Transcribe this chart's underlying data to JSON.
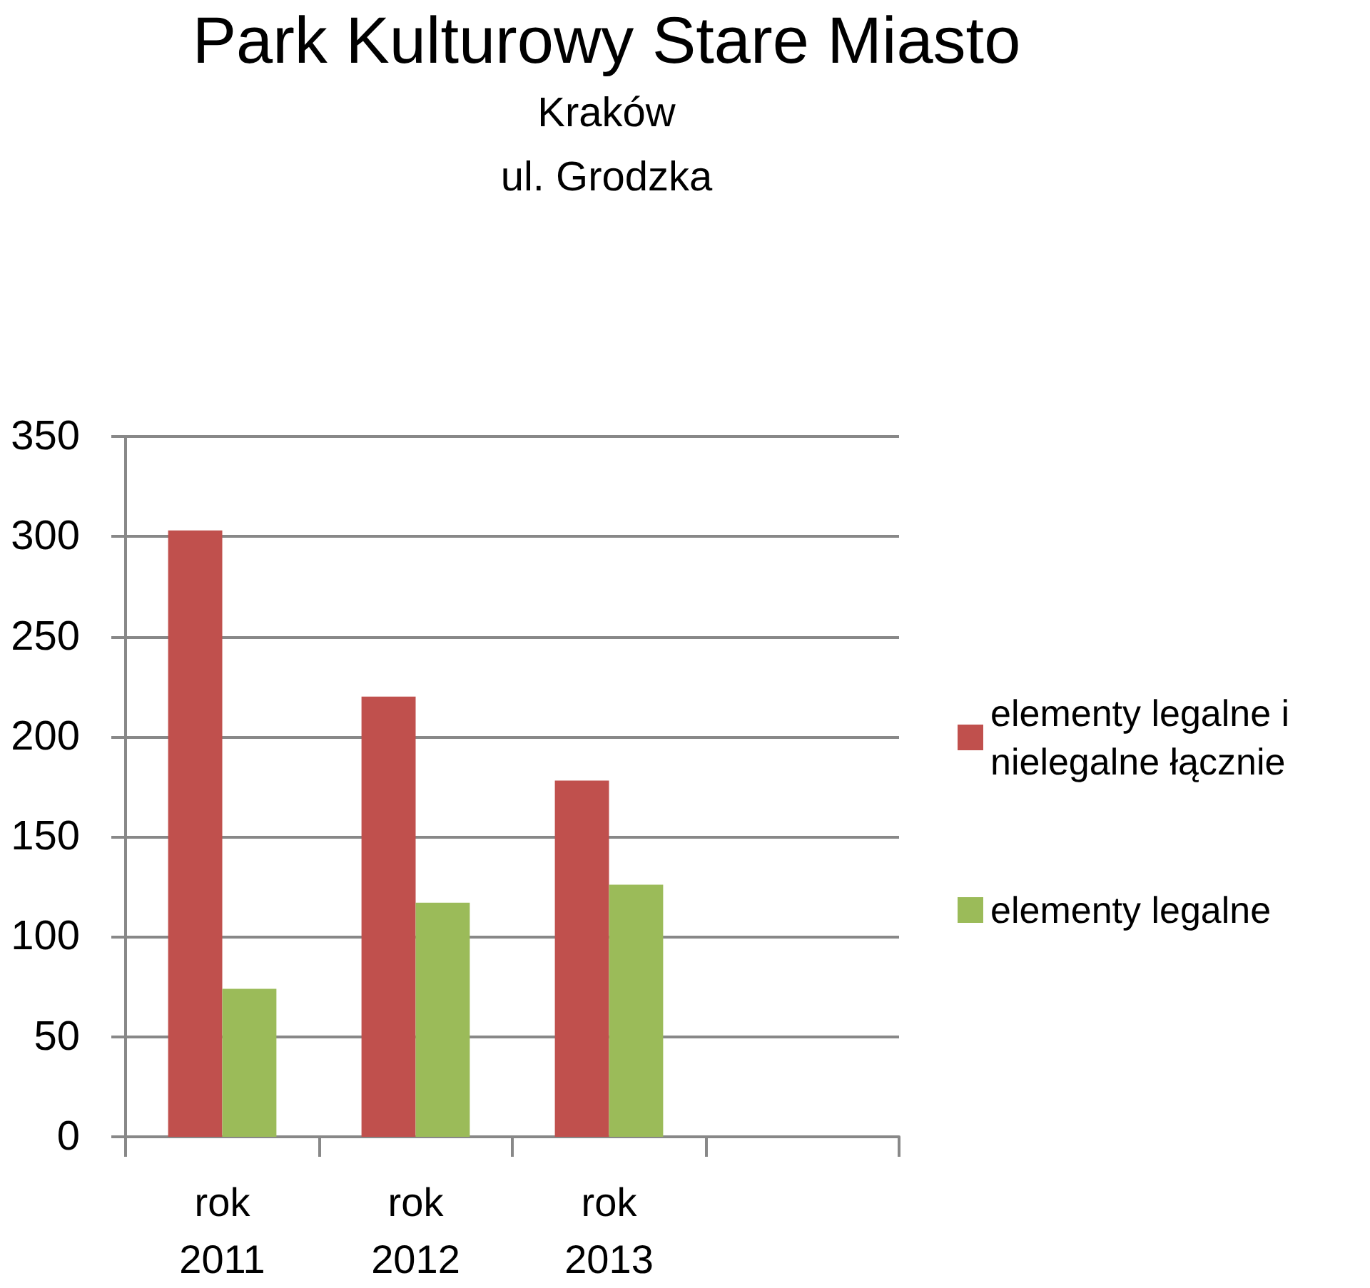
{
  "chart_data": {
    "type": "bar",
    "title": "Park Kulturowy Stare Miasto",
    "subtitle": "Kraków\nul. Grodzka",
    "categories": [
      "rok 2011",
      "rok 2012",
      "rok 2013",
      null
    ],
    "series": [
      {
        "name": "elementy legalne i nielegalne łącznie",
        "color": "#c0504d",
        "values": [
          303,
          220,
          178,
          null
        ]
      },
      {
        "name": "elementy legalne",
        "color": "#9bbb59",
        "values": [
          74,
          117,
          126,
          null
        ]
      }
    ],
    "ylim": [
      0,
      350
    ],
    "yticks": [
      0,
      50,
      100,
      150,
      200,
      250,
      300,
      350
    ],
    "grid": "y",
    "legend": "right"
  }
}
